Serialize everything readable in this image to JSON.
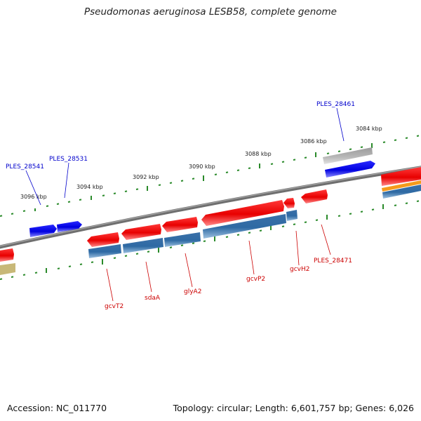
{
  "title": "Pseudomonas aeruginosa LESB58, complete genome",
  "footer": {
    "accession": "Accession: NC_011770",
    "summary": "Topology: circular; Length: 6,601,757 bp; Genes: 6,026"
  },
  "kbp_labels": [
    "3084 kbp",
    "3086 kbp",
    "3088 kbp",
    "3090 kbp",
    "3092 kbp",
    "3094 kbp",
    "3096 kbp"
  ],
  "forward_labels": [
    "PLES_28461",
    "PLES_28531",
    "PLES_28541"
  ],
  "reverse_labels": [
    "PLES_28471",
    "gcvH2",
    "gcvP2",
    "glyA2",
    "sdaA",
    "gcvT2"
  ],
  "colors": {
    "forward_gene": "#1a1af0",
    "reverse_gene": "#f01414",
    "cds": "#4a82b8",
    "rna": "#b9b9b9",
    "other": "#c8b878",
    "orange": "#f59a1c",
    "backbone": "#7a7a7a",
    "ticks": "#2a8a2a",
    "forward_label": "#0000cc",
    "reverse_label": "#cc0000"
  }
}
